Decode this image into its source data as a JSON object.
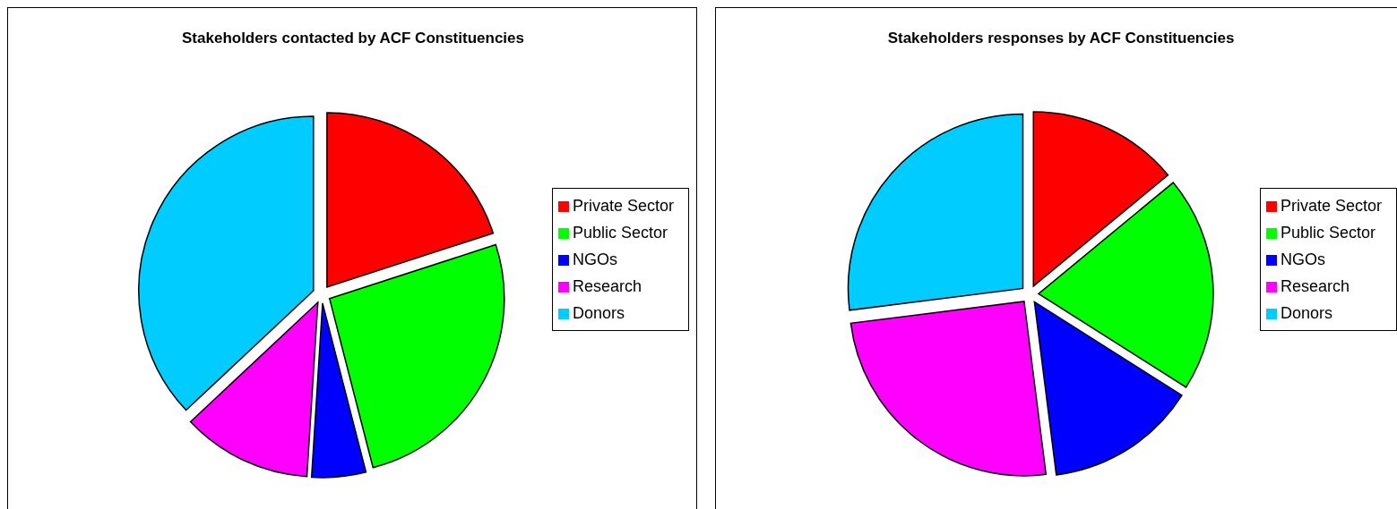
{
  "chart_data": [
    {
      "type": "pie",
      "title": "Stakeholders contacted by ACF Constituencies",
      "categories": [
        "Private Sector",
        "Public Sector",
        "NGOs",
        "Research",
        "Donors"
      ],
      "values": [
        20,
        26,
        5,
        12,
        37
      ],
      "colors": [
        "#ff0000",
        "#00ff00",
        "#0000ff",
        "#ff00ff",
        "#00ccff"
      ],
      "legend": "right"
    },
    {
      "type": "pie",
      "title": "Stakeholders responses by ACF Constituencies",
      "categories": [
        "Private Sector",
        "Public Sector",
        "NGOs",
        "Research",
        "Donors"
      ],
      "values": [
        14,
        20,
        14,
        25,
        27
      ],
      "colors": [
        "#ff0000",
        "#00ff00",
        "#0000ff",
        "#ff00ff",
        "#00ccff"
      ],
      "legend": "right"
    }
  ]
}
